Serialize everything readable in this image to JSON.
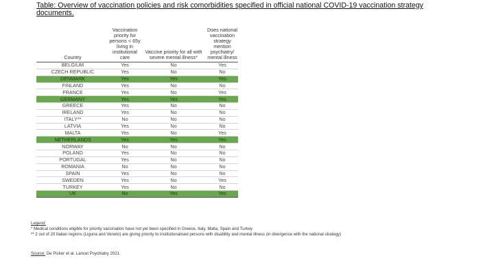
{
  "title": "Table: Overview of vaccination policies and risk comorbidities specified in official national COVID-19 vaccination strategy documents.",
  "table": {
    "headers": [
      "Country",
      "Vaccination priority for persons < 65y living in institutional care",
      "Vaccine priority for all with severe mental illness*",
      "Does national vaccination strategy mention psychiatry/ mental illness"
    ],
    "highlight_color": "#6aa84f",
    "rows": [
      {
        "country": "BELGIUM",
        "c1": "Yes",
        "c2": "No",
        "c3": "Yes",
        "hl": false
      },
      {
        "country": "CZECH REPUBLIC",
        "c1": "Yes",
        "c2": "No",
        "c3": "No",
        "hl": false
      },
      {
        "country": "DENMARK",
        "c1": "Yes",
        "c2": "Yes",
        "c3": "Yes",
        "hl": true
      },
      {
        "country": "FINLAND",
        "c1": "Yes",
        "c2": "No",
        "c3": "No",
        "hl": false
      },
      {
        "country": "FRANCE",
        "c1": "Yes",
        "c2": "No",
        "c3": "Yes",
        "hl": false
      },
      {
        "country": "GERMANY",
        "c1": "Yes",
        "c2": "Yes",
        "c3": "Yes",
        "hl": true
      },
      {
        "country": "GREECE",
        "c1": "Yes",
        "c2": "No",
        "c3": "No",
        "hl": false
      },
      {
        "country": "IRELAND",
        "c1": "Yes",
        "c2": "No",
        "c3": "No",
        "hl": false
      },
      {
        "country": "ITALY**",
        "c1": "No",
        "c2": "No",
        "c3": "No",
        "hl": false
      },
      {
        "country": "LATVIA",
        "c1": "Yes",
        "c2": "No",
        "c3": "No",
        "hl": false
      },
      {
        "country": "MALTA",
        "c1": "Yes",
        "c2": "No",
        "c3": "Yes",
        "hl": false
      },
      {
        "country": "NETHERLANDS",
        "c1": "Yes",
        "c2": "Yes",
        "c3": "Yes",
        "hl": true
      },
      {
        "country": "NORWAY",
        "c1": "No",
        "c2": "No",
        "c3": "No",
        "hl": false
      },
      {
        "country": "POLAND",
        "c1": "Yes",
        "c2": "No",
        "c3": "No",
        "hl": false
      },
      {
        "country": "PORTUGAL",
        "c1": "Yes",
        "c2": "No",
        "c3": "No",
        "hl": false
      },
      {
        "country": "ROMANIA",
        "c1": "No",
        "c2": "No",
        "c3": "No",
        "hl": false
      },
      {
        "country": "SPAIN",
        "c1": "Yes",
        "c2": "No",
        "c3": "No",
        "hl": false
      },
      {
        "country": "SWEDEN",
        "c1": "Yes",
        "c2": "No",
        "c3": "Yes",
        "hl": false
      },
      {
        "country": "TURKEY",
        "c1": "Yes",
        "c2": "No",
        "c3": "No",
        "hl": false
      },
      {
        "country": "UK",
        "c1": "No",
        "c2": "Yes",
        "c3": "Yes",
        "hl": true
      }
    ]
  },
  "notes": {
    "legend_label": "Legend:",
    "note1": "* Medical conditions eligible for priority vaccination have not yet been specified in Greece, Italy, Malta, Spain and Turkey",
    "note2": "** 2 out of 20 Italian regions (Liguria and Veneto) are giving priority to institutionalised persons with disability and mental illness (in divergence with the national strategy)"
  },
  "source": {
    "label": "Source:",
    "text": " De Picker et al. Lancet Psychiatry 2021."
  }
}
